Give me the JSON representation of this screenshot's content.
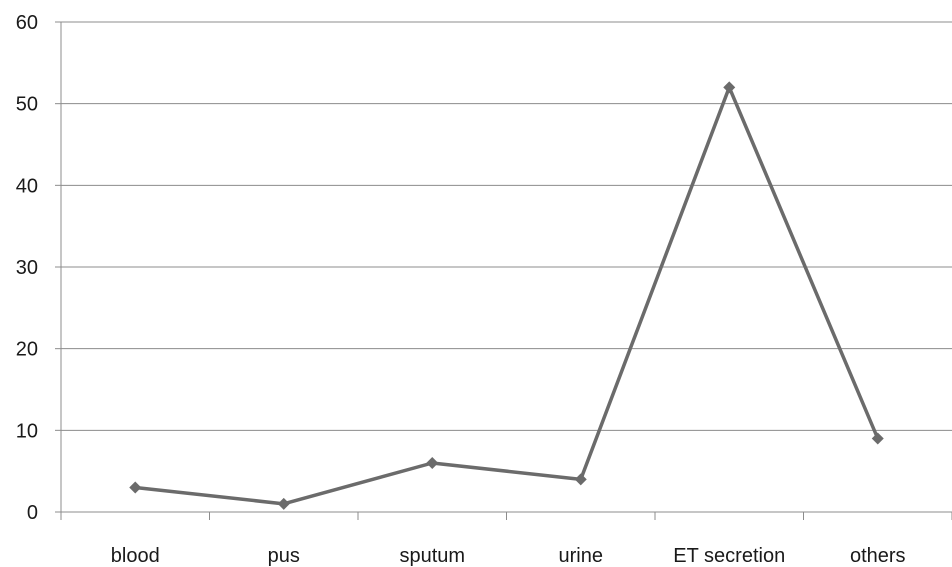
{
  "chart_data": {
    "type": "line",
    "categories": [
      "blood",
      "pus",
      "sputum",
      "urine",
      "ET secretion",
      "others"
    ],
    "series": [
      {
        "values": [
          3,
          1,
          6,
          4,
          52,
          9
        ]
      }
    ],
    "title": "",
    "xlabel": "",
    "ylabel": "",
    "ylim": [
      0,
      60
    ],
    "yticks": [
      0,
      10,
      20,
      30,
      40,
      50,
      60
    ],
    "grid": true,
    "legend": "none",
    "colors": {
      "line": "#6b6b6b",
      "marker": "#6b6b6b",
      "grid": "#8c8c8c"
    }
  }
}
